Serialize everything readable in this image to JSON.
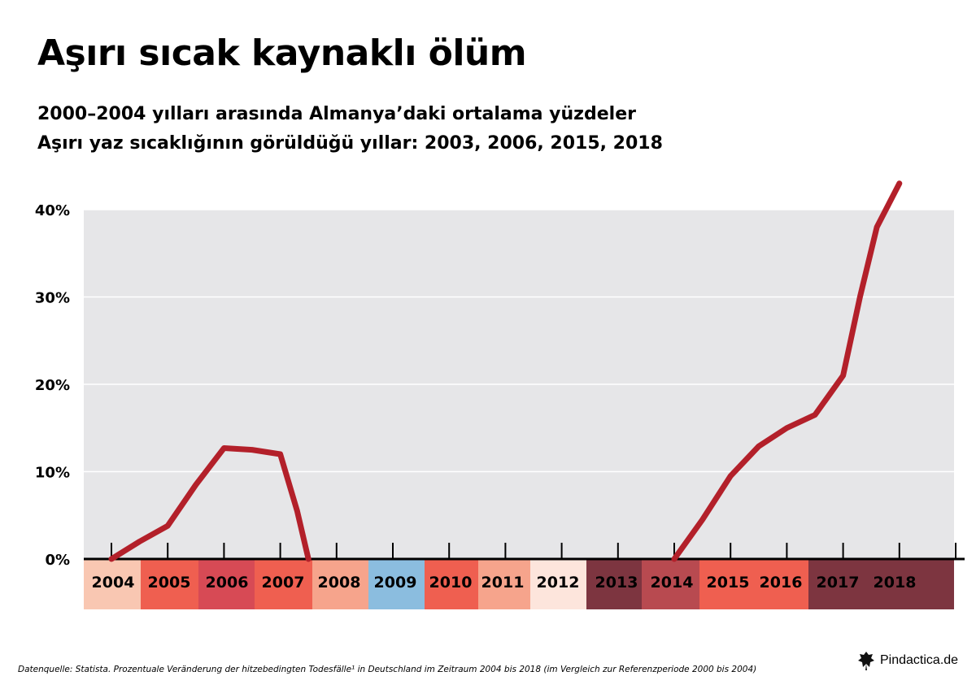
{
  "header": {
    "title": "Aşırı sıcak kaynaklı ölüm",
    "subtitle_1": "2000–2004 yılları arasında Almanya’daki ortalama yüzdeler",
    "subtitle_2": "Aşırı yaz sıcaklığının görüldüğü yıllar: 2003, 2006, 2015, 2018"
  },
  "footer": {
    "source": "Datenquelle: Statista. Prozentuale Veränderung der hitzebedingten Todesfälle¹ in Deutschland im Zeitraum 2004 bis 2018 (im Vergleich zur Referenzperiode 2000 bis 2004)",
    "brand": "Pindactica.de",
    "brand_icon": "pindactica-logo-icon"
  },
  "chart_data": {
    "type": "line",
    "y_ticks": [
      "0%",
      "10%",
      "20%",
      "30%",
      "40%"
    ],
    "ylim": [
      0,
      40
    ],
    "grid": true,
    "plot_background": "#e6e6e8",
    "line_color": "#b3202a",
    "year_bands": [
      {
        "label": "2004",
        "color": "#f9c7b2"
      },
      {
        "label": "2005",
        "color": "#ef5f50"
      },
      {
        "label": "2006",
        "color": "#d74a55"
      },
      {
        "label": "2007",
        "color": "#ef5f50"
      },
      {
        "label": "2008",
        "color": "#f6a48c"
      },
      {
        "label": "2009",
        "color": "#8bbddf"
      },
      {
        "label": "2010",
        "color": "#ef5f50"
      },
      {
        "label": "2011",
        "color": "#f6a48c"
      },
      {
        "label": "2012",
        "color": "#fde5dc"
      },
      {
        "label": "2013",
        "color": "#7d3540"
      },
      {
        "label": "2014",
        "color": "#b84a50"
      },
      {
        "label": "2015",
        "color": "#ef5f50"
      },
      {
        "label": "2016",
        "color": "#ef5f50"
      },
      {
        "label": "2017",
        "color": "#7d3540"
      },
      {
        "label": "2018",
        "color": "#7d3540"
      }
    ],
    "series": [
      {
        "segment": "2004-2008",
        "x": [
          2004.0,
          2004.5,
          2005.0,
          2005.5,
          2006.0,
          2006.5,
          2007.0,
          2007.3,
          2007.5
        ],
        "y": [
          0,
          2,
          3.8,
          8.5,
          12.7,
          12.5,
          12,
          5.5,
          0
        ]
      },
      {
        "segment": "2014-2018",
        "x": [
          2014.0,
          2014.5,
          2015.0,
          2015.5,
          2016.0,
          2016.5,
          2017.0,
          2017.3,
          2017.6,
          2018.0
        ],
        "y": [
          0,
          4.5,
          9.5,
          12.9,
          15,
          16.5,
          21,
          30,
          38,
          43
        ]
      }
    ]
  }
}
